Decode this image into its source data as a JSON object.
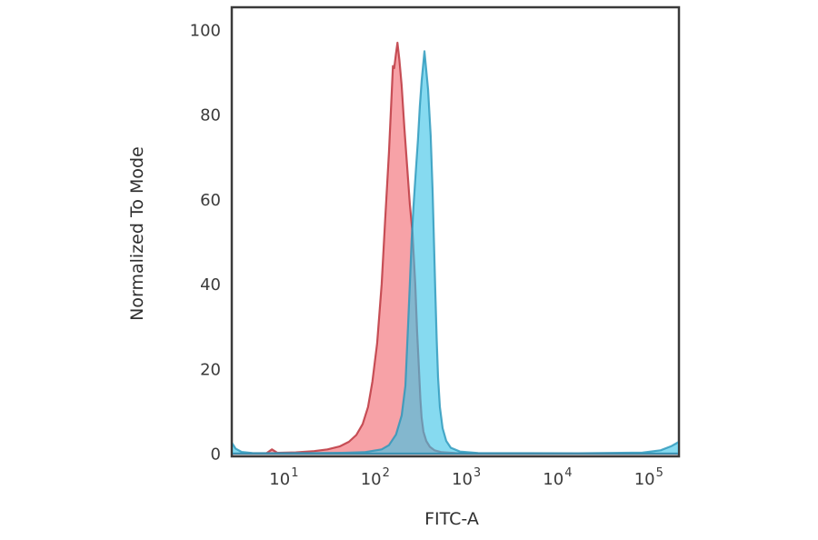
{
  "chart_data": {
    "type": "area",
    "subtype": "flow-cytometry-histogram-overlay",
    "title": "",
    "xlabel": "FITC-A",
    "ylabel": "Normalized To Mode",
    "x_scale": "log",
    "xlim": [
      2.5,
      200000
    ],
    "ylim": [
      -1,
      105
    ],
    "grid": false,
    "legend": "none",
    "frame_color": "#3a3a3a",
    "text_color": "#3b3b3b",
    "x_ticks": [
      {
        "value": 10,
        "base": "10",
        "exp": "1"
      },
      {
        "value": 100,
        "base": "10",
        "exp": "2"
      },
      {
        "value": 1000,
        "base": "10",
        "exp": "3"
      },
      {
        "value": 10000,
        "base": "10",
        "exp": "4"
      },
      {
        "value": 100000,
        "base": "10",
        "exp": "5"
      }
    ],
    "y_ticks": [
      0,
      20,
      40,
      60,
      80,
      100
    ],
    "series": [
      {
        "name": "red-population",
        "peak_x": 164,
        "peak_y": 97,
        "fill": "#f0555f",
        "fill_opacity": 0.55,
        "stroke": "#bd3740",
        "stroke_opacity": 0.85,
        "points": [
          [
            2.5,
            0
          ],
          [
            6,
            0.1
          ],
          [
            6.9,
            1.0
          ],
          [
            7.9,
            0.2
          ],
          [
            12.6,
            0.3
          ],
          [
            20,
            0.6
          ],
          [
            28,
            1.0
          ],
          [
            38,
            1.7
          ],
          [
            48,
            2.8
          ],
          [
            58,
            4.4
          ],
          [
            68,
            7
          ],
          [
            78,
            11
          ],
          [
            87,
            17
          ],
          [
            98,
            26
          ],
          [
            110,
            40
          ],
          [
            120,
            55
          ],
          [
            132,
            71
          ],
          [
            141,
            84
          ],
          [
            146,
            91.5
          ],
          [
            151,
            91.0
          ],
          [
            158,
            94.5
          ],
          [
            164,
            97
          ],
          [
            172,
            93
          ],
          [
            182,
            87
          ],
          [
            195,
            77
          ],
          [
            209,
            68
          ],
          [
            224,
            59
          ],
          [
            240,
            52
          ],
          [
            257,
            40
          ],
          [
            269,
            29
          ],
          [
            279,
            22
          ],
          [
            292,
            13
          ],
          [
            302,
            8.5
          ],
          [
            316,
            5.2
          ],
          [
            339,
            3.0
          ],
          [
            372,
            1.6
          ],
          [
            417,
            0.8
          ],
          [
            501,
            0.35
          ],
          [
            708,
            0.12
          ],
          [
            1259,
            0.05
          ],
          [
            200000,
            0
          ]
        ]
      },
      {
        "name": "blue-population",
        "peak_x": 324,
        "peak_y": 95,
        "fill": "#3cc3e6",
        "fill_opacity": 0.62,
        "stroke": "#2896ba",
        "stroke_opacity": 0.8,
        "points": [
          [
            2.5,
            2.6
          ],
          [
            2.75,
            1.2
          ],
          [
            3.2,
            0.4
          ],
          [
            4.2,
            0.15
          ],
          [
            7.9,
            0.1
          ],
          [
            20,
            0.12
          ],
          [
            40,
            0.2
          ],
          [
            71,
            0.35
          ],
          [
            110,
            1.0
          ],
          [
            132,
            2.0
          ],
          [
            158,
            4.5
          ],
          [
            182,
            9
          ],
          [
            200,
            16
          ],
          [
            214,
            30
          ],
          [
            224,
            40
          ],
          [
            234,
            50
          ],
          [
            245,
            58
          ],
          [
            263,
            68
          ],
          [
            275,
            74
          ],
          [
            288,
            82
          ],
          [
            302,
            88
          ],
          [
            324,
            95
          ],
          [
            331,
            93
          ],
          [
            355,
            86
          ],
          [
            380,
            75
          ],
          [
            398,
            62
          ],
          [
            412,
            50
          ],
          [
            427,
            38
          ],
          [
            442,
            27
          ],
          [
            457,
            18
          ],
          [
            479,
            11
          ],
          [
            513,
            6
          ],
          [
            562,
            3.0
          ],
          [
            631,
            1.4
          ],
          [
            794,
            0.5
          ],
          [
            1259,
            0.15
          ],
          [
            15849,
            0.08
          ],
          [
            79433,
            0.25
          ],
          [
            125893,
            0.8
          ],
          [
            166000,
            1.8
          ],
          [
            200000,
            2.8
          ]
        ]
      }
    ]
  }
}
